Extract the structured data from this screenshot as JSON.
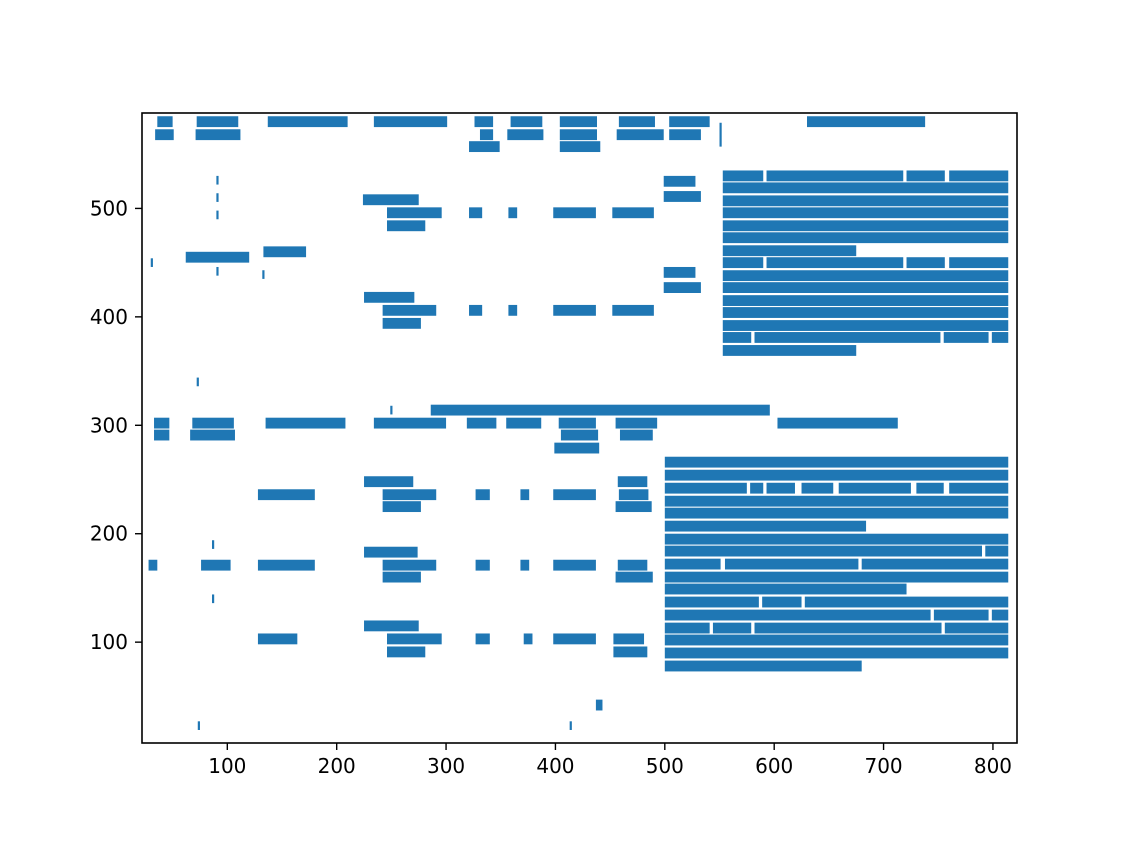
{
  "chart_data": {
    "type": "broken_barh",
    "color": "#1f77b4",
    "xlim": [
      22,
      822
    ],
    "ylim": [
      7,
      588
    ],
    "xticks": [
      100,
      200,
      300,
      400,
      500,
      600,
      700,
      800
    ],
    "yticks": [
      100,
      200,
      300,
      400,
      500
    ],
    "xtick_labels": [
      "100",
      "200",
      "300",
      "400",
      "500",
      "600",
      "700",
      "800"
    ],
    "ytick_labels": [
      "100",
      "200",
      "300",
      "400",
      "500"
    ],
    "bar_height": 10,
    "rows": [
      {
        "y": 580,
        "spans": [
          [
            36,
            50
          ],
          [
            72,
            110
          ],
          [
            137,
            210
          ],
          [
            234,
            301
          ],
          [
            326,
            343
          ],
          [
            359,
            388
          ],
          [
            404,
            438
          ],
          [
            458,
            491
          ],
          [
            504,
            541
          ],
          [
            630,
            738
          ]
        ]
      },
      {
        "y": 568,
        "spans": [
          [
            34,
            51
          ],
          [
            71,
            112
          ],
          [
            331,
            343
          ],
          [
            356,
            389
          ],
          [
            404,
            438
          ],
          [
            456,
            499
          ],
          [
            504,
            533
          ]
        ]
      },
      {
        "y": 557,
        "spans": [
          [
            321,
            349
          ],
          [
            404,
            441
          ]
        ]
      },
      {
        "y": 568,
        "h": 22,
        "spans": [
          [
            550,
            552
          ]
        ]
      },
      {
        "y": 530,
        "spans": [
          [
            553,
            590
          ],
          [
            593,
            718
          ],
          [
            721,
            756
          ],
          [
            760,
            814
          ]
        ]
      },
      {
        "y": 519,
        "spans": [
          [
            553,
            814
          ]
        ]
      },
      {
        "y": 507,
        "spans": [
          [
            553,
            814
          ]
        ]
      },
      {
        "y": 496,
        "spans": [
          [
            553,
            814
          ]
        ]
      },
      {
        "y": 484,
        "spans": [
          [
            553,
            814
          ]
        ]
      },
      {
        "y": 473,
        "spans": [
          [
            553,
            814
          ]
        ]
      },
      {
        "y": 461,
        "spans": [
          [
            553,
            675
          ]
        ]
      },
      {
        "y": 450,
        "spans": [
          [
            553,
            590
          ],
          [
            593,
            718
          ],
          [
            721,
            756
          ],
          [
            760,
            814
          ]
        ]
      },
      {
        "y": 438,
        "spans": [
          [
            553,
            814
          ]
        ]
      },
      {
        "y": 427,
        "spans": [
          [
            553,
            814
          ]
        ]
      },
      {
        "y": 415,
        "spans": [
          [
            553,
            814
          ]
        ]
      },
      {
        "y": 404,
        "spans": [
          [
            553,
            814
          ]
        ]
      },
      {
        "y": 392,
        "spans": [
          [
            553,
            814
          ]
        ]
      },
      {
        "y": 381,
        "spans": [
          [
            553,
            579
          ],
          [
            582,
            752
          ],
          [
            755,
            796
          ],
          [
            799,
            814
          ]
        ]
      },
      {
        "y": 369,
        "spans": [
          [
            553,
            675
          ]
        ]
      },
      {
        "y": 525,
        "spans": [
          [
            499,
            528
          ]
        ]
      },
      {
        "y": 511,
        "spans": [
          [
            499,
            533
          ]
        ]
      },
      {
        "y": 441,
        "spans": [
          [
            499,
            528
          ]
        ]
      },
      {
        "y": 427,
        "spans": [
          [
            499,
            533
          ]
        ]
      },
      {
        "y": 526,
        "h": 8,
        "spans": [
          [
            90,
            92
          ]
        ]
      },
      {
        "y": 510,
        "h": 8,
        "spans": [
          [
            90,
            92
          ]
        ]
      },
      {
        "y": 494,
        "h": 8,
        "spans": [
          [
            90,
            92
          ]
        ]
      },
      {
        "y": 442,
        "h": 8,
        "spans": [
          [
            90,
            92
          ]
        ]
      },
      {
        "y": 508,
        "spans": [
          [
            224,
            275
          ]
        ]
      },
      {
        "y": 496,
        "spans": [
          [
            246,
            296
          ],
          [
            321,
            333
          ],
          [
            357,
            365
          ],
          [
            398,
            437
          ],
          [
            452,
            490
          ]
        ]
      },
      {
        "y": 484,
        "spans": [
          [
            246,
            281
          ]
        ]
      },
      {
        "y": 460,
        "spans": [
          [
            133,
            172
          ]
        ]
      },
      {
        "y": 455,
        "spans": [
          [
            62,
            120
          ]
        ]
      },
      {
        "y": 450,
        "h": 8,
        "spans": [
          [
            30,
            32
          ]
        ]
      },
      {
        "y": 439,
        "h": 8,
        "spans": [
          [
            132,
            134
          ]
        ]
      },
      {
        "y": 418,
        "spans": [
          [
            225,
            271
          ]
        ]
      },
      {
        "y": 406,
        "spans": [
          [
            242,
            291
          ],
          [
            321,
            333
          ],
          [
            357,
            365
          ],
          [
            398,
            437
          ],
          [
            452,
            490
          ]
        ]
      },
      {
        "y": 394,
        "spans": [
          [
            242,
            277
          ]
        ]
      },
      {
        "y": 340,
        "h": 8,
        "spans": [
          [
            72,
            74
          ]
        ]
      },
      {
        "y": 314,
        "h": 8,
        "spans": [
          [
            249,
            251
          ]
        ]
      },
      {
        "y": 314,
        "spans": [
          [
            286,
            596
          ]
        ]
      },
      {
        "y": 302,
        "spans": [
          [
            33,
            47
          ],
          [
            68,
            106
          ],
          [
            135,
            208
          ],
          [
            234,
            300
          ],
          [
            319,
            346
          ],
          [
            355,
            387
          ],
          [
            403,
            437
          ],
          [
            455,
            493
          ],
          [
            603,
            713
          ]
        ]
      },
      {
        "y": 291,
        "spans": [
          [
            33,
            47
          ],
          [
            66,
            107
          ],
          [
            405,
            439
          ],
          [
            459,
            489
          ]
        ]
      },
      {
        "y": 279,
        "spans": [
          [
            399,
            440
          ]
        ]
      },
      {
        "y": 266,
        "spans": [
          [
            500,
            814
          ]
        ]
      },
      {
        "y": 254,
        "spans": [
          [
            500,
            814
          ]
        ]
      },
      {
        "y": 242,
        "spans": [
          [
            500,
            575
          ],
          [
            578,
            590
          ],
          [
            593,
            619
          ],
          [
            625,
            654
          ],
          [
            659,
            725
          ],
          [
            730,
            755
          ],
          [
            760,
            814
          ]
        ]
      },
      {
        "y": 230,
        "spans": [
          [
            500,
            814
          ]
        ]
      },
      {
        "y": 219,
        "spans": [
          [
            500,
            814
          ]
        ]
      },
      {
        "y": 207,
        "spans": [
          [
            500,
            684
          ]
        ]
      },
      {
        "y": 195,
        "spans": [
          [
            500,
            814
          ]
        ]
      },
      {
        "y": 184,
        "spans": [
          [
            500,
            790
          ],
          [
            793,
            814
          ]
        ]
      },
      {
        "y": 172,
        "spans": [
          [
            500,
            551
          ],
          [
            555,
            677
          ],
          [
            680,
            814
          ]
        ]
      },
      {
        "y": 160,
        "spans": [
          [
            500,
            814
          ]
        ]
      },
      {
        "y": 149,
        "spans": [
          [
            500,
            721
          ]
        ]
      },
      {
        "y": 137,
        "spans": [
          [
            500,
            586
          ],
          [
            589,
            625
          ],
          [
            628,
            814
          ]
        ]
      },
      {
        "y": 125,
        "spans": [
          [
            500,
            743
          ],
          [
            746,
            796
          ],
          [
            799,
            814
          ]
        ]
      },
      {
        "y": 113,
        "spans": [
          [
            500,
            541
          ],
          [
            544,
            579
          ],
          [
            582,
            753
          ],
          [
            756,
            814
          ]
        ]
      },
      {
        "y": 102,
        "spans": [
          [
            500,
            814
          ]
        ]
      },
      {
        "y": 90,
        "spans": [
          [
            500,
            814
          ]
        ]
      },
      {
        "y": 78,
        "spans": [
          [
            500,
            680
          ]
        ]
      },
      {
        "y": 248,
        "spans": [
          [
            225,
            270
          ]
        ]
      },
      {
        "y": 236,
        "spans": [
          [
            128,
            180
          ],
          [
            242,
            291
          ],
          [
            327,
            340
          ],
          [
            368,
            376
          ],
          [
            398,
            437
          ],
          [
            458,
            485
          ]
        ]
      },
      {
        "y": 225,
        "spans": [
          [
            242,
            277
          ],
          [
            455,
            488
          ]
        ]
      },
      {
        "y": 248,
        "spans": [
          [
            457,
            484
          ]
        ]
      },
      {
        "y": 190,
        "h": 8,
        "spans": [
          [
            86,
            88
          ]
        ]
      },
      {
        "y": 183,
        "spans": [
          [
            225,
            274
          ]
        ]
      },
      {
        "y": 171,
        "spans": [
          [
            28,
            36
          ],
          [
            76,
            103
          ],
          [
            128,
            180
          ],
          [
            242,
            291
          ],
          [
            327,
            340
          ],
          [
            368,
            376
          ],
          [
            398,
            437
          ],
          [
            457,
            484
          ]
        ]
      },
      {
        "y": 160,
        "spans": [
          [
            242,
            277
          ],
          [
            455,
            489
          ]
        ]
      },
      {
        "y": 140,
        "h": 8,
        "spans": [
          [
            86,
            88
          ]
        ]
      },
      {
        "y": 115,
        "spans": [
          [
            225,
            275
          ]
        ]
      },
      {
        "y": 103,
        "spans": [
          [
            128,
            164
          ],
          [
            246,
            296
          ],
          [
            327,
            340
          ],
          [
            371,
            379
          ],
          [
            398,
            437
          ],
          [
            453,
            481
          ]
        ]
      },
      {
        "y": 91,
        "spans": [
          [
            246,
            281
          ],
          [
            453,
            484
          ]
        ]
      },
      {
        "y": 42,
        "spans": [
          [
            437,
            443
          ]
        ]
      },
      {
        "y": 23,
        "h": 8,
        "spans": [
          [
            73,
            75
          ]
        ]
      },
      {
        "y": 23,
        "h": 8,
        "spans": [
          [
            413,
            415
          ]
        ]
      }
    ]
  }
}
